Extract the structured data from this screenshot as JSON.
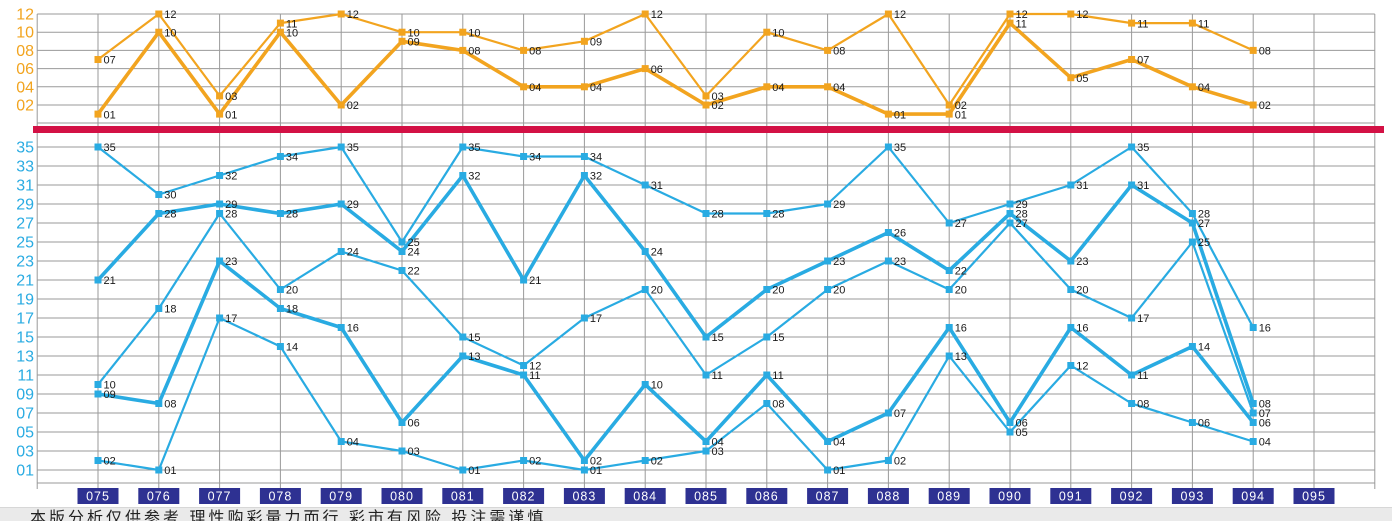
{
  "colors": {
    "front_zone_accent": "#29ABE2",
    "back_zone_accent": "#F2A41F",
    "divider_red": "#D31145",
    "grid_gray": "#9A9A9A",
    "issue_box_navy": "#2E3192",
    "point_label_black": "#1A1A1A",
    "footer_strip_gray": "#EAEAEA"
  },
  "footer": {
    "disclaimer": "本版分析仅供参考 理性购彩量力而行 彩市有风险 投注需谨慎"
  },
  "chart_data": {
    "type": "line",
    "title": "",
    "x_axis_issues": [
      "075",
      "076",
      "077",
      "078",
      "079",
      "080",
      "081",
      "082",
      "083",
      "084",
      "085",
      "086",
      "087",
      "088",
      "089",
      "090",
      "091",
      "092",
      "093",
      "094",
      "095"
    ],
    "no_data_issues": [
      "095"
    ],
    "back_zone": {
      "range": [
        1,
        12
      ],
      "y_tick_labels": [
        "12",
        "10",
        "08",
        "06",
        "04",
        "02"
      ],
      "y_tick_values": [
        12,
        10,
        8,
        6,
        4,
        2
      ],
      "grid": true,
      "series_names": [
        "back-ball-1",
        "back-ball-2"
      ]
    },
    "front_zone": {
      "range": [
        1,
        35
      ],
      "y_tick_labels": [
        "35",
        "33",
        "31",
        "29",
        "27",
        "25",
        "23",
        "21",
        "19",
        "17",
        "15",
        "13",
        "11",
        "09",
        "07",
        "05",
        "03",
        "01"
      ],
      "y_tick_values": [
        35,
        33,
        31,
        29,
        27,
        25,
        23,
        21,
        19,
        17,
        15,
        13,
        11,
        9,
        7,
        5,
        3,
        1
      ],
      "grid": true,
      "series_names": [
        "front-ball-1",
        "front-ball-2",
        "front-ball-3",
        "front-ball-4",
        "front-ball-5"
      ]
    },
    "draws": [
      {
        "issue": "075",
        "front": [
          2,
          9,
          10,
          21,
          35
        ],
        "back": [
          1,
          7
        ]
      },
      {
        "issue": "076",
        "front": [
          1,
          8,
          18,
          28,
          30
        ],
        "back": [
          10,
          12
        ]
      },
      {
        "issue": "077",
        "front": [
          17,
          23,
          28,
          29,
          32
        ],
        "back": [
          1,
          3
        ]
      },
      {
        "issue": "078",
        "front": [
          14,
          18,
          20,
          28,
          34
        ],
        "back": [
          10,
          11
        ]
      },
      {
        "issue": "079",
        "front": [
          4,
          16,
          24,
          29,
          35
        ],
        "back": [
          2,
          12
        ]
      },
      {
        "issue": "080",
        "front": [
          3,
          6,
          22,
          24,
          25
        ],
        "back": [
          9,
          10
        ]
      },
      {
        "issue": "081",
        "front": [
          1,
          13,
          15,
          32,
          35
        ],
        "back": [
          8,
          10
        ]
      },
      {
        "issue": "082",
        "front": [
          2,
          11,
          12,
          21,
          34
        ],
        "back": [
          4,
          8
        ]
      },
      {
        "issue": "083",
        "front": [
          1,
          2,
          17,
          32,
          34
        ],
        "back": [
          4,
          9
        ]
      },
      {
        "issue": "084",
        "front": [
          2,
          10,
          20,
          24,
          31
        ],
        "back": [
          6,
          12
        ]
      },
      {
        "issue": "085",
        "front": [
          3,
          4,
          11,
          15,
          28
        ],
        "back": [
          2,
          3
        ]
      },
      {
        "issue": "086",
        "front": [
          8,
          11,
          15,
          20,
          28
        ],
        "back": [
          4,
          10
        ]
      },
      {
        "issue": "087",
        "front": [
          1,
          4,
          20,
          23,
          29
        ],
        "back": [
          4,
          8
        ]
      },
      {
        "issue": "088",
        "front": [
          2,
          7,
          23,
          26,
          35
        ],
        "back": [
          1,
          12
        ]
      },
      {
        "issue": "089",
        "front": [
          13,
          16,
          20,
          22,
          27
        ],
        "back": [
          1,
          2
        ]
      },
      {
        "issue": "090",
        "front": [
          5,
          6,
          27,
          28,
          29
        ],
        "back": [
          11,
          12
        ]
      },
      {
        "issue": "091",
        "front": [
          12,
          16,
          20,
          23,
          31
        ],
        "back": [
          5,
          12
        ]
      },
      {
        "issue": "092",
        "front": [
          8,
          11,
          17,
          31,
          35
        ],
        "back": [
          7,
          11
        ]
      },
      {
        "issue": "093",
        "front": [
          6,
          14,
          25,
          27,
          28
        ],
        "back": [
          4,
          11
        ]
      },
      {
        "issue": "094",
        "front": [
          4,
          6,
          7,
          8,
          16
        ],
        "back": [
          2,
          8
        ]
      },
      {
        "issue": "095",
        "front": null,
        "back": null
      }
    ]
  }
}
